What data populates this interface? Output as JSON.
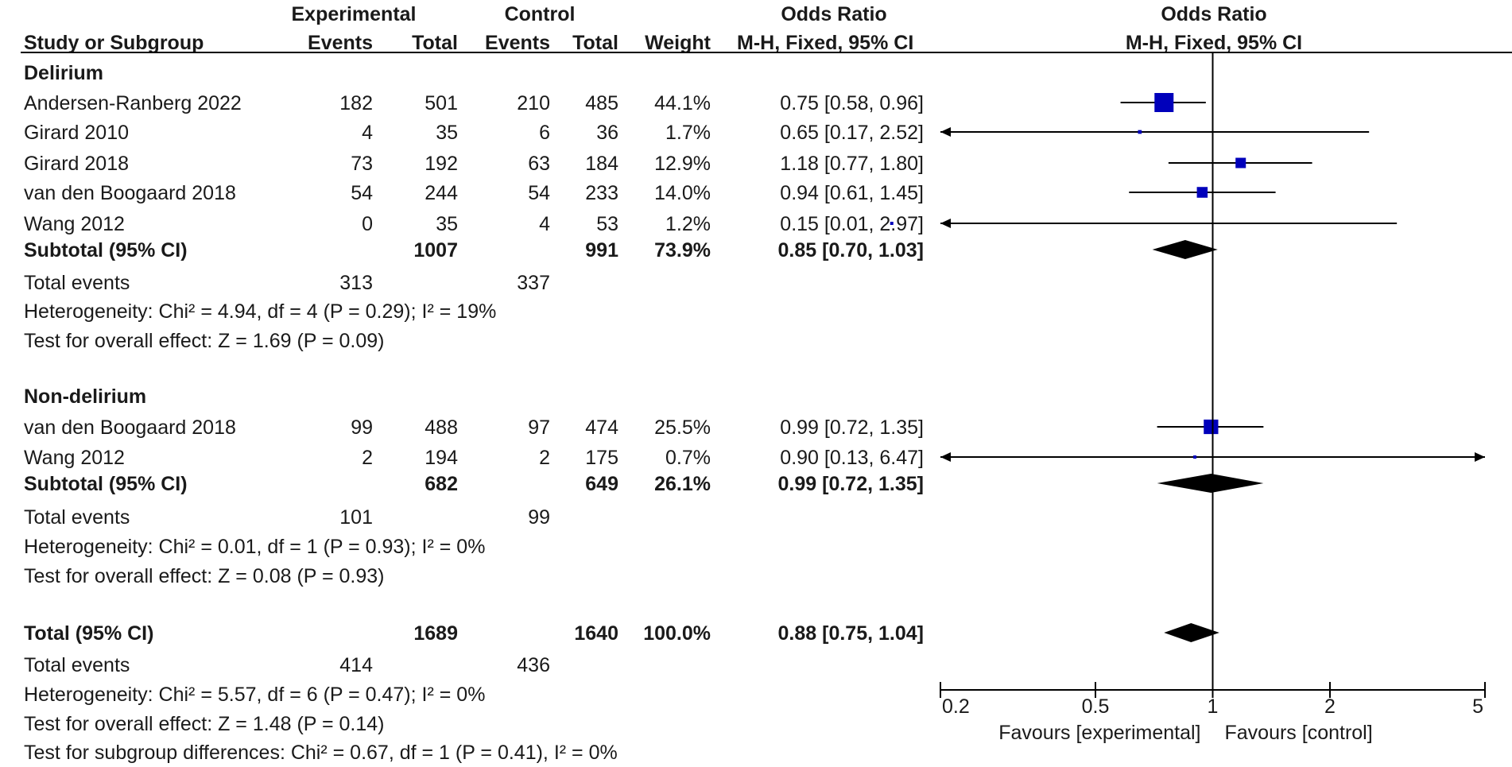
{
  "header": {
    "group1": "Experimental",
    "group2": "Control",
    "effect_title": "Odds Ratio",
    "plot_title": "Odds Ratio",
    "col_study": "Study or Subgroup",
    "col_events1": "Events",
    "col_total1": "Total",
    "col_events2": "Events",
    "col_total2": "Total",
    "col_weight": "Weight",
    "col_method": "M-H, Fixed, 95% CI",
    "plot_method": "M-H, Fixed, 95% CI"
  },
  "chart_data": {
    "type": "forest",
    "scale": "log",
    "xlim": [
      0.2,
      5
    ],
    "x_ticks": [
      0.2,
      0.5,
      1,
      2,
      5
    ],
    "x_tick_labels": [
      "0.2",
      "0.5",
      "1",
      "2",
      "5"
    ],
    "x_label_left": "Favours [experimental]",
    "x_label_right": "Favours [control]",
    "colors": {
      "study_marker": "#0000bb",
      "summary": "#000000",
      "line": "#000000"
    },
    "subgroups": [
      {
        "name": "Delirium",
        "studies": [
          {
            "study": "Andersen-Ranberg 2022",
            "events1": "182",
            "total1": "501",
            "events2": "210",
            "total2": "485",
            "weight_label": "44.1%",
            "ci_label": "0.75 [0.58, 0.96]",
            "or": 0.75,
            "lo": 0.58,
            "hi": 0.96,
            "weight": 44.1
          },
          {
            "study": "Girard 2010",
            "events1": "4",
            "total1": "35",
            "events2": "6",
            "total2": "36",
            "weight_label": "1.7%",
            "ci_label": "0.65 [0.17, 2.52]",
            "or": 0.65,
            "lo": 0.17,
            "hi": 2.52,
            "weight": 1.7
          },
          {
            "study": "Girard 2018",
            "events1": "73",
            "total1": "192",
            "events2": "63",
            "total2": "184",
            "weight_label": "12.9%",
            "ci_label": "1.18 [0.77, 1.80]",
            "or": 1.18,
            "lo": 0.77,
            "hi": 1.8,
            "weight": 12.9
          },
          {
            "study": "van den Boogaard 2018",
            "events1": "54",
            "total1": "244",
            "events2": "54",
            "total2": "233",
            "weight_label": "14.0%",
            "ci_label": "0.94 [0.61, 1.45]",
            "or": 0.94,
            "lo": 0.61,
            "hi": 1.45,
            "weight": 14.0
          },
          {
            "study": "Wang 2012",
            "events1": "0",
            "total1": "35",
            "events2": "4",
            "total2": "53",
            "weight_label": "1.2%",
            "ci_label": "0.15 [0.01, 2.97]",
            "or": 0.15,
            "lo": 0.01,
            "hi": 2.97,
            "weight": 1.2
          }
        ],
        "subtotal": {
          "label": "Subtotal (95% CI)",
          "total1": "1007",
          "total2": "991",
          "weight_label": "73.9%",
          "ci_label": "0.85 [0.70, 1.03]",
          "or": 0.85,
          "lo": 0.7,
          "hi": 1.03
        },
        "total_events": {
          "label": "Total events",
          "events1": "313",
          "events2": "337"
        },
        "heterogeneity": "Heterogeneity: Chi² = 4.94, df = 4 (P = 0.29); I² = 19%",
        "overall_effect": "Test for overall effect: Z = 1.69 (P = 0.09)"
      },
      {
        "name": "Non-delirium",
        "studies": [
          {
            "study": "van den Boogaard 2018",
            "events1": "99",
            "total1": "488",
            "events2": "97",
            "total2": "474",
            "weight_label": "25.5%",
            "ci_label": "0.99 [0.72, 1.35]",
            "or": 0.99,
            "lo": 0.72,
            "hi": 1.35,
            "weight": 25.5
          },
          {
            "study": "Wang 2012",
            "events1": "2",
            "total1": "194",
            "events2": "2",
            "total2": "175",
            "weight_label": "0.7%",
            "ci_label": "0.90 [0.13, 6.47]",
            "or": 0.9,
            "lo": 0.13,
            "hi": 6.47,
            "weight": 0.7
          }
        ],
        "subtotal": {
          "label": "Subtotal (95% CI)",
          "total1": "682",
          "total2": "649",
          "weight_label": "26.1%",
          "ci_label": "0.99 [0.72, 1.35]",
          "or": 0.99,
          "lo": 0.72,
          "hi": 1.35
        },
        "total_events": {
          "label": "Total events",
          "events1": "101",
          "events2": "99"
        },
        "heterogeneity": "Heterogeneity: Chi² = 0.01, df = 1 (P = 0.93); I² = 0%",
        "overall_effect": "Test for overall effect: Z = 0.08 (P = 0.93)"
      }
    ],
    "overall": {
      "label": "Total (95% CI)",
      "total1": "1689",
      "total2": "1640",
      "weight_label": "100.0%",
      "ci_label": "0.88 [0.75, 1.04]",
      "or": 0.88,
      "lo": 0.75,
      "hi": 1.04,
      "total_events": {
        "label": "Total events",
        "events1": "414",
        "events2": "436"
      },
      "heterogeneity": "Heterogeneity: Chi² = 5.57, df = 6 (P = 0.47); I² = 0%",
      "overall_effect": "Test for overall effect: Z = 1.48 (P = 0.14)",
      "subgroup_differences": "Test for subgroup differences: Chi² = 0.67, df = 1 (P = 0.41), I² = 0%"
    }
  }
}
